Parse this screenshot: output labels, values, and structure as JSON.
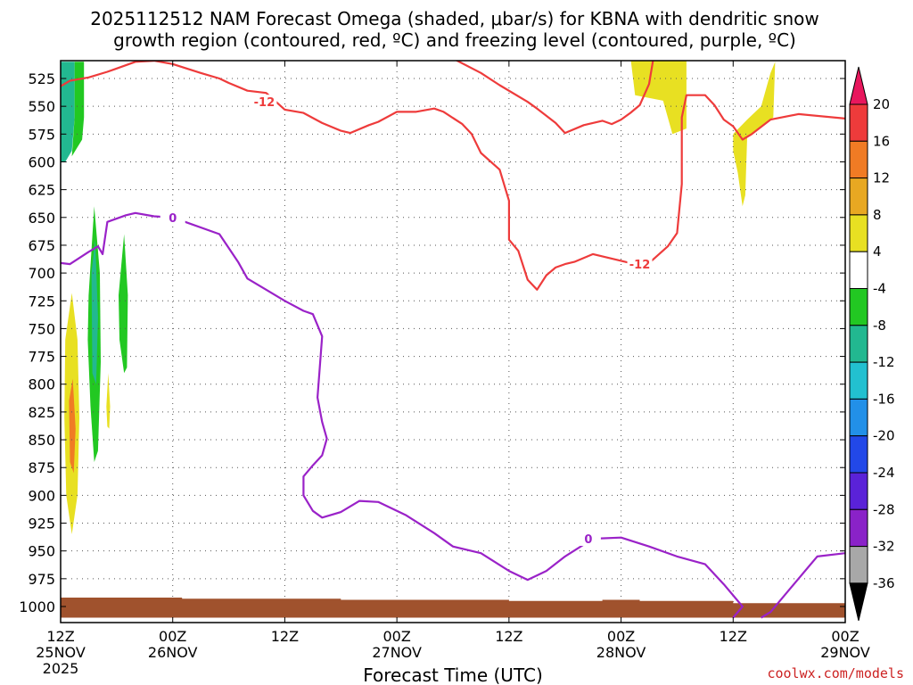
{
  "chart_data": {
    "type": "area",
    "title_line1": "2025112512 NAM Forecast Omega (shaded, μbar/s) for KBNA with dendritic snow",
    "title_line2": "growth region (contoured, red, ºC) and freezing level (contoured, purple, ºC)",
    "xlabel": "Forecast Time (UTC)",
    "credit": "coolwx.com/models",
    "x_hours_range": [
      0,
      84
    ],
    "y_pressure_range": [
      1000,
      525
    ],
    "y_ticks": [
      "525",
      "550",
      "575",
      "600",
      "625",
      "650",
      "675",
      "700",
      "725",
      "750",
      "775",
      "800",
      "825",
      "850",
      "875",
      "900",
      "925",
      "950",
      "975",
      "1000"
    ],
    "x_ticks": [
      {
        "hour": 0,
        "line1": "12Z",
        "line2": "25NOV",
        "line3": "2025"
      },
      {
        "hour": 12,
        "line1": "00Z",
        "line2": "26NOV",
        "line3": ""
      },
      {
        "hour": 24,
        "line1": "12Z",
        "line2": "",
        "line3": ""
      },
      {
        "hour": 36,
        "line1": "00Z",
        "line2": "27NOV",
        "line3": ""
      },
      {
        "hour": 48,
        "line1": "12Z",
        "line2": "",
        "line3": ""
      },
      {
        "hour": 60,
        "line1": "00Z",
        "line2": "28NOV",
        "line3": ""
      },
      {
        "hour": 72,
        "line1": "12Z",
        "line2": "",
        "line3": ""
      },
      {
        "hour": 84,
        "line1": "00Z",
        "line2": "29NOV",
        "line3": ""
      }
    ],
    "colorbar": {
      "levels": [
        "20",
        "16",
        "12",
        "8",
        "4",
        "-4",
        "-8",
        "-12",
        "-16",
        "-20",
        "-24",
        "-28",
        "-32",
        "-36"
      ],
      "colors": [
        "#e8175d",
        "#ee3b3b",
        "#f07b24",
        "#e8a822",
        "#e8e022",
        "#ffffff",
        "#22c822",
        "#22b890",
        "#22c0d0",
        "#2290e8",
        "#2248e8",
        "#5a22d8",
        "#8a22c8",
        "#a8a8a8",
        "#000000"
      ]
    },
    "contours": {
      "dgz_minus12": {
        "color": "#ee3b3b",
        "label": "-12",
        "points": [
          [
            0,
            532
          ],
          [
            1,
            527
          ],
          [
            3,
            524
          ],
          [
            5,
            519
          ],
          [
            8,
            510
          ],
          [
            10,
            509
          ],
          [
            12,
            512
          ],
          [
            15,
            520
          ],
          [
            17,
            525
          ],
          [
            18,
            529
          ],
          [
            20,
            536
          ],
          [
            22,
            538
          ],
          [
            24,
            553
          ],
          [
            26,
            556
          ],
          [
            28,
            565
          ],
          [
            30,
            572
          ],
          [
            31,
            574
          ],
          [
            33,
            567
          ],
          [
            34,
            564
          ],
          [
            36,
            555
          ],
          [
            38,
            555
          ],
          [
            40,
            552
          ],
          [
            41,
            555
          ],
          [
            43,
            566
          ],
          [
            44,
            575
          ],
          [
            45,
            592
          ],
          [
            47,
            607
          ],
          [
            48,
            635
          ],
          [
            48,
            670
          ],
          [
            49,
            680
          ],
          [
            50,
            706
          ],
          [
            51,
            715
          ],
          [
            52,
            702
          ],
          [
            53,
            695
          ],
          [
            54,
            692
          ],
          [
            55,
            690
          ],
          [
            57,
            683
          ],
          [
            58,
            685
          ],
          [
            60,
            689
          ],
          [
            61,
            691
          ],
          [
            63,
            691
          ],
          [
            65,
            676
          ],
          [
            66,
            664
          ],
          [
            66.5,
            620
          ],
          [
            66.5,
            560
          ],
          [
            67,
            540
          ],
          [
            69,
            540
          ],
          [
            70,
            549
          ],
          [
            71,
            562
          ],
          [
            72,
            568
          ],
          [
            73,
            580
          ],
          [
            74,
            575
          ],
          [
            76,
            562
          ],
          [
            79,
            557
          ],
          [
            84,
            561
          ]
        ],
        "top_points": [
          [
            42,
            507
          ],
          [
            45,
            520
          ],
          [
            47,
            531
          ],
          [
            50,
            546
          ],
          [
            51,
            552
          ],
          [
            53,
            565
          ],
          [
            54,
            574
          ],
          [
            56,
            567
          ],
          [
            58,
            563
          ],
          [
            59,
            566
          ],
          [
            60,
            562
          ],
          [
            61,
            556
          ],
          [
            62,
            549
          ],
          [
            63,
            530
          ],
          [
            63.5,
            505
          ]
        ]
      },
      "freezing_0": {
        "color": "#9a22c8",
        "label": "0",
        "points": [
          [
            0,
            691
          ],
          [
            1,
            692
          ],
          [
            3,
            681
          ],
          [
            4,
            676
          ],
          [
            4.5,
            683
          ],
          [
            5,
            654
          ],
          [
            7,
            648
          ],
          [
            8,
            646
          ],
          [
            10,
            649
          ],
          [
            12,
            650
          ],
          [
            14,
            656
          ],
          [
            17,
            665
          ],
          [
            19,
            690
          ],
          [
            20,
            705
          ],
          [
            22,
            715
          ],
          [
            24,
            725
          ],
          [
            26,
            734
          ],
          [
            27,
            737
          ],
          [
            28,
            757
          ],
          [
            27.5,
            812
          ],
          [
            28,
            834
          ],
          [
            28.5,
            849
          ],
          [
            28,
            864
          ],
          [
            27,
            873
          ],
          [
            26,
            883
          ],
          [
            26,
            900
          ],
          [
            27,
            914
          ],
          [
            28,
            920
          ],
          [
            30,
            915
          ],
          [
            32,
            905
          ],
          [
            34,
            906
          ],
          [
            37,
            918
          ],
          [
            40,
            934
          ],
          [
            42,
            946
          ],
          [
            45,
            952
          ],
          [
            48,
            968
          ],
          [
            50,
            976
          ],
          [
            52,
            968
          ],
          [
            54,
            955
          ],
          [
            57,
            939
          ],
          [
            60,
            938
          ],
          [
            63,
            946
          ],
          [
            66,
            955
          ],
          [
            69,
            962
          ],
          [
            71,
            980
          ],
          [
            73,
            1000
          ],
          [
            72,
            1010
          ]
        ],
        "right_points": [
          [
            75,
            1010
          ],
          [
            76,
            1005
          ],
          [
            79,
            975
          ],
          [
            81,
            955
          ],
          [
            84,
            952
          ]
        ]
      }
    },
    "surface_fill_color": "#a0522d",
    "omega_regions": [
      {
        "name": "teal-top-left",
        "value": -12
      },
      {
        "name": "green-top-left",
        "value": -6
      },
      {
        "name": "yellow-low-left",
        "value": 6
      },
      {
        "name": "orange-low-left",
        "value": 10
      },
      {
        "name": "green-mid-left",
        "value": -6
      },
      {
        "name": "teal-mid-left",
        "value": -12
      },
      {
        "name": "green-mid-2",
        "value": -6
      },
      {
        "name": "yellow-small",
        "value": 6
      },
      {
        "name": "yellow-top-right-1",
        "value": 6
      },
      {
        "name": "yellow-top-right-2",
        "value": 6
      }
    ]
  }
}
